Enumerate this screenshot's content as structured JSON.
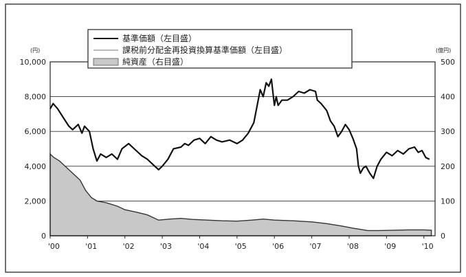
{
  "chart_data": {
    "type": "line",
    "x_ticks": [
      "'00",
      "'01",
      "'02",
      "'03",
      "'04",
      "'05",
      "'06",
      "'07",
      "'08",
      "'09",
      "'10"
    ],
    "x_range": [
      2000,
      2010.3
    ],
    "y_left": {
      "unit": "(円)",
      "ylim": [
        0,
        10000
      ],
      "ticks": [
        "0",
        "2,000",
        "4,000",
        "6,000",
        "8,000",
        "10,000"
      ]
    },
    "y_right": {
      "unit": "(億円)",
      "ylim": [
        0,
        500
      ],
      "ticks": [
        "0",
        "100",
        "200",
        "300",
        "400",
        "500"
      ]
    },
    "grid": true,
    "legend_position": "top",
    "legend": [
      {
        "label": "基準価額（左目盛）",
        "style": "line",
        "color": "#111111"
      },
      {
        "label": "課税前分配金再投資換算基準価額（左目盛）",
        "style": "line",
        "color": "#bbbbbb"
      },
      {
        "label": "純資産（右目盛）",
        "style": "area",
        "color": "#c8c8c8"
      }
    ],
    "series": [
      {
        "name": "基準価額（左目盛）",
        "axis": "left",
        "color": "#111111",
        "points": [
          [
            2000,
            7300
          ],
          [
            2000.08,
            7600
          ],
          [
            2000.2,
            7300
          ],
          [
            2000.35,
            6800
          ],
          [
            2000.5,
            6300
          ],
          [
            2000.6,
            6100
          ],
          [
            2000.75,
            6400
          ],
          [
            2000.85,
            5900
          ],
          [
            2000.92,
            6300
          ],
          [
            2001.05,
            6000
          ],
          [
            2001.15,
            5000
          ],
          [
            2001.25,
            4300
          ],
          [
            2001.35,
            4700
          ],
          [
            2001.5,
            4500
          ],
          [
            2001.65,
            4700
          ],
          [
            2001.8,
            4400
          ],
          [
            2001.92,
            5000
          ],
          [
            2002.1,
            5300
          ],
          [
            2002.25,
            5000
          ],
          [
            2002.45,
            4600
          ],
          [
            2002.6,
            4400
          ],
          [
            2002.8,
            4000
          ],
          [
            2002.9,
            3800
          ],
          [
            2003.0,
            4000
          ],
          [
            2003.15,
            4400
          ],
          [
            2003.3,
            5000
          ],
          [
            2003.5,
            5100
          ],
          [
            2003.6,
            5300
          ],
          [
            2003.7,
            5200
          ],
          [
            2003.85,
            5500
          ],
          [
            2004.0,
            5600
          ],
          [
            2004.15,
            5300
          ],
          [
            2004.3,
            5700
          ],
          [
            2004.45,
            5500
          ],
          [
            2004.6,
            5400
          ],
          [
            2004.8,
            5500
          ],
          [
            2005.0,
            5300
          ],
          [
            2005.15,
            5500
          ],
          [
            2005.3,
            5900
          ],
          [
            2005.45,
            6500
          ],
          [
            2005.55,
            7600
          ],
          [
            2005.62,
            8400
          ],
          [
            2005.7,
            8000
          ],
          [
            2005.78,
            8800
          ],
          [
            2005.85,
            8600
          ],
          [
            2005.92,
            9000
          ],
          [
            2006.0,
            7500
          ],
          [
            2006.05,
            8000
          ],
          [
            2006.1,
            7500
          ],
          [
            2006.2,
            7800
          ],
          [
            2006.35,
            7800
          ],
          [
            2006.5,
            8000
          ],
          [
            2006.65,
            8300
          ],
          [
            2006.8,
            8200
          ],
          [
            2006.95,
            8400
          ],
          [
            2007.1,
            8300
          ],
          [
            2007.15,
            7800
          ],
          [
            2007.25,
            7600
          ],
          [
            2007.4,
            7200
          ],
          [
            2007.5,
            6600
          ],
          [
            2007.6,
            6300
          ],
          [
            2007.7,
            5700
          ],
          [
            2007.8,
            6000
          ],
          [
            2007.9,
            6400
          ],
          [
            2008.0,
            6100
          ],
          [
            2008.1,
            5600
          ],
          [
            2008.2,
            5000
          ],
          [
            2008.25,
            4000
          ],
          [
            2008.3,
            3600
          ],
          [
            2008.38,
            3900
          ],
          [
            2008.45,
            4000
          ],
          [
            2008.55,
            3600
          ],
          [
            2008.65,
            3300
          ],
          [
            2008.75,
            4000
          ],
          [
            2008.85,
            4400
          ],
          [
            2009.0,
            4800
          ],
          [
            2009.15,
            4600
          ],
          [
            2009.3,
            4900
          ],
          [
            2009.45,
            4700
          ],
          [
            2009.6,
            5000
          ],
          [
            2009.75,
            5100
          ],
          [
            2009.85,
            4800
          ],
          [
            2009.95,
            4900
          ],
          [
            2010.05,
            4500
          ],
          [
            2010.15,
            4400
          ]
        ]
      },
      {
        "name": "課税前分配金再投資換算基準価額（左目盛）",
        "axis": "left",
        "color": "#bbbbbb",
        "points": [
          [
            2000,
            7300
          ],
          [
            2000.08,
            7600
          ],
          [
            2000.2,
            7300
          ],
          [
            2000.35,
            6800
          ],
          [
            2000.5,
            6300
          ],
          [
            2000.6,
            6100
          ],
          [
            2000.75,
            6400
          ],
          [
            2000.85,
            5900
          ],
          [
            2000.92,
            6300
          ],
          [
            2001.05,
            6000
          ],
          [
            2001.15,
            5000
          ],
          [
            2001.25,
            4300
          ],
          [
            2001.35,
            4700
          ],
          [
            2001.5,
            4500
          ],
          [
            2001.65,
            4700
          ],
          [
            2001.8,
            4400
          ],
          [
            2001.92,
            5000
          ],
          [
            2002.1,
            5300
          ],
          [
            2002.25,
            5000
          ],
          [
            2002.45,
            4600
          ],
          [
            2002.6,
            4400
          ],
          [
            2002.8,
            4000
          ],
          [
            2002.9,
            3800
          ],
          [
            2003.0,
            4000
          ],
          [
            2003.15,
            4400
          ],
          [
            2003.3,
            5000
          ],
          [
            2003.5,
            5100
          ],
          [
            2003.6,
            5300
          ],
          [
            2003.7,
            5200
          ],
          [
            2003.85,
            5500
          ],
          [
            2004.0,
            5600
          ],
          [
            2004.15,
            5300
          ],
          [
            2004.3,
            5700
          ],
          [
            2004.45,
            5500
          ],
          [
            2004.6,
            5400
          ],
          [
            2004.8,
            5500
          ],
          [
            2005.0,
            5300
          ],
          [
            2005.15,
            5500
          ],
          [
            2005.3,
            5900
          ],
          [
            2005.45,
            6500
          ],
          [
            2005.55,
            7600
          ],
          [
            2005.62,
            8400
          ],
          [
            2005.7,
            8000
          ],
          [
            2005.78,
            8800
          ],
          [
            2005.85,
            8600
          ],
          [
            2005.92,
            9000
          ],
          [
            2006.0,
            7500
          ],
          [
            2006.05,
            8000
          ],
          [
            2006.1,
            7500
          ],
          [
            2006.2,
            7800
          ],
          [
            2006.35,
            7800
          ],
          [
            2006.5,
            8000
          ],
          [
            2006.65,
            8300
          ],
          [
            2006.8,
            8200
          ],
          [
            2006.95,
            8400
          ],
          [
            2007.1,
            8300
          ],
          [
            2007.15,
            7800
          ],
          [
            2007.25,
            7600
          ],
          [
            2007.4,
            7200
          ],
          [
            2007.5,
            6600
          ],
          [
            2007.6,
            6300
          ],
          [
            2007.7,
            5700
          ],
          [
            2007.8,
            6000
          ],
          [
            2007.9,
            6400
          ],
          [
            2008.0,
            6100
          ],
          [
            2008.1,
            5600
          ],
          [
            2008.2,
            5000
          ],
          [
            2008.25,
            4000
          ],
          [
            2008.3,
            3600
          ],
          [
            2008.38,
            3900
          ],
          [
            2008.45,
            4000
          ],
          [
            2008.55,
            3600
          ],
          [
            2008.65,
            3300
          ],
          [
            2008.75,
            4000
          ],
          [
            2008.85,
            4400
          ],
          [
            2009.0,
            4800
          ],
          [
            2009.15,
            4600
          ],
          [
            2009.3,
            4900
          ],
          [
            2009.45,
            4700
          ],
          [
            2009.6,
            5000
          ],
          [
            2009.75,
            5100
          ],
          [
            2009.85,
            4800
          ],
          [
            2009.95,
            4900
          ],
          [
            2010.05,
            4500
          ],
          [
            2010.15,
            4400
          ]
        ]
      },
      {
        "name": "純資産（右目盛）",
        "axis": "right",
        "type": "area",
        "color": "#c8c8c8",
        "points": [
          [
            2000,
            235
          ],
          [
            2000.1,
            225
          ],
          [
            2000.25,
            215
          ],
          [
            2000.4,
            200
          ],
          [
            2000.6,
            180
          ],
          [
            2000.8,
            160
          ],
          [
            2000.95,
            130
          ],
          [
            2001.1,
            110
          ],
          [
            2001.25,
            100
          ],
          [
            2001.5,
            95
          ],
          [
            2001.8,
            85
          ],
          [
            2002.0,
            75
          ],
          [
            2002.3,
            68
          ],
          [
            2002.6,
            60
          ],
          [
            2002.9,
            45
          ],
          [
            2003.2,
            48
          ],
          [
            2003.5,
            50
          ],
          [
            2003.8,
            47
          ],
          [
            2004.2,
            45
          ],
          [
            2004.6,
            43
          ],
          [
            2005.0,
            42
          ],
          [
            2005.4,
            45
          ],
          [
            2005.7,
            48
          ],
          [
            2006.0,
            45
          ],
          [
            2006.5,
            43
          ],
          [
            2007.0,
            40
          ],
          [
            2007.4,
            35
          ],
          [
            2007.8,
            28
          ],
          [
            2008.1,
            22
          ],
          [
            2008.5,
            15
          ],
          [
            2008.8,
            15
          ],
          [
            2009.2,
            16
          ],
          [
            2009.6,
            17
          ],
          [
            2010.0,
            17
          ],
          [
            2010.2,
            16
          ]
        ]
      }
    ]
  }
}
